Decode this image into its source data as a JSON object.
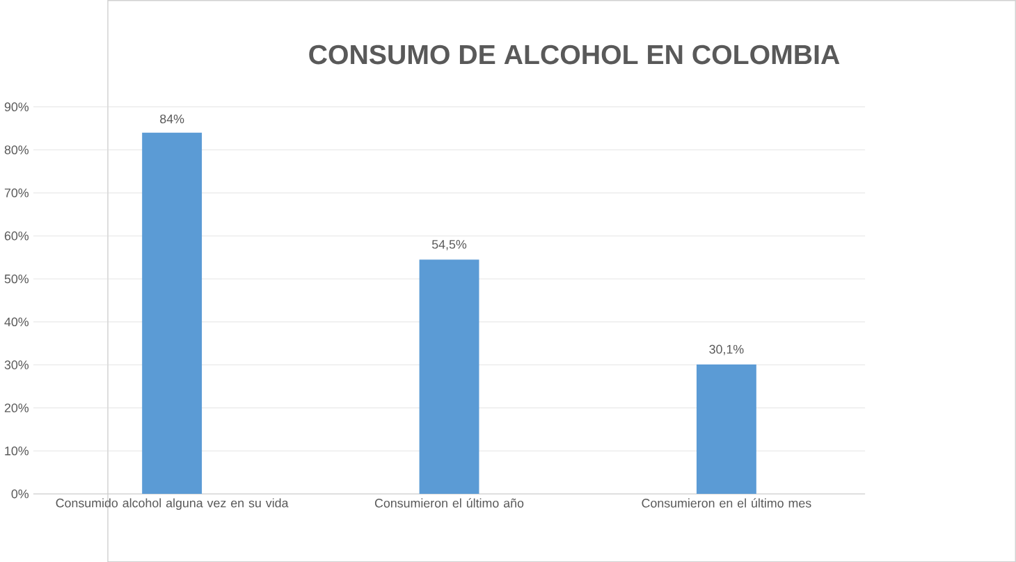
{
  "chart_data": {
    "type": "bar",
    "title": "CONSUMO DE ALCOHOL EN COLOMBIA",
    "categories": [
      "Consumido alcohol alguna vez en su vida",
      "Consumieron el último año",
      "Consumieron en el último mes"
    ],
    "values": [
      84,
      54.5,
      30.1
    ],
    "value_labels": [
      "84%",
      "54,5%",
      "30,1%"
    ],
    "color": "#5b9bd5",
    "ylim": [
      0,
      90
    ],
    "yticks": [
      {
        "value": 0,
        "label": "0%"
      },
      {
        "value": 10,
        "label": "10%"
      },
      {
        "value": 20,
        "label": "20%"
      },
      {
        "value": 30,
        "label": "30%"
      },
      {
        "value": 40,
        "label": "40%"
      },
      {
        "value": 50,
        "label": "50%"
      },
      {
        "value": 60,
        "label": "60%"
      },
      {
        "value": 70,
        "label": "70%"
      },
      {
        "value": 80,
        "label": "80%"
      },
      {
        "value": 90,
        "label": "90%"
      }
    ],
    "grid": "y"
  }
}
